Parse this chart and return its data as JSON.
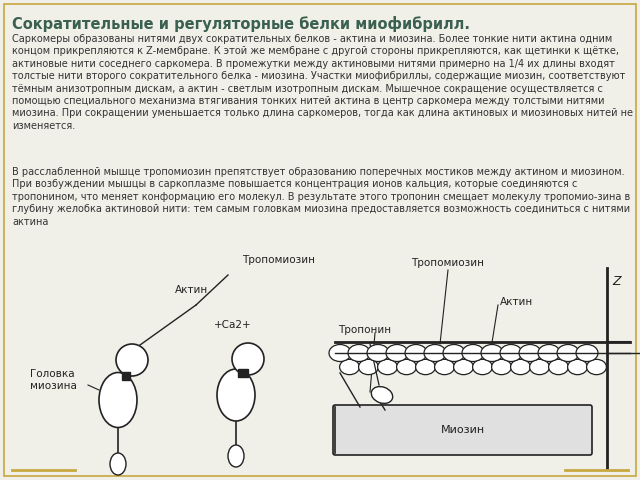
{
  "title": "Сократительные и регуляторные белки миофибрилл.",
  "title_color": "#3a6050",
  "title_fontsize": 10.5,
  "body_text_1": "Саркомеры образованы нитями двух сократительных белков - актина и миозина. Более тонкие нити актина одним концом прикрепляются к Z-мембране. К этой же мембране с другой стороны прикрепляются, как щетинки к щётке, актиновые нити соседнего саркомера. В промежутки между актиновыми нитями примерно на 1/4 их длины входят толстые нити второго сократительного белка - миозина. Участки миофибриллы, содержащие миозин, соответствуют тёмным анизотропным дискам, а актин - светлым изотропным дискам. Мышечное сокращение осуществляется с помощью специального механизма втягивания тонких нитей актина в центр саркомера между толстыми нитями миозина. При сокращении уменьшается только длина саркомеров, тогда как длина актиновых и миозиновых нитей не изменяется.",
  "body_text_2": "В расслабленной мышце тропомиозин препятствует образованию поперечных мостиков между актином и миозином. При возбуждении мышцы в саркоплазме повышается концентрация ионов кальция, которые соединяются с тропонином, что меняет конформацию его молекул. В результате этого тропонин смещает молекулу тропомио-зина в глубину желобка актиновой нити: тем самым головкам миозина предоставляется возможность соединиться с нитями актина",
  "body_fontsize": 7.0,
  "body_color": "#333333",
  "bg_color": "#f0efe8",
  "border_color": "#c8a840",
  "line_color": "#222222",
  "left_labels": {
    "tropomyosin": "Тропомиозин",
    "actin": "Актин",
    "myosin_head": "Головка\nмиозина",
    "ca": "+Ca2+"
  },
  "right_labels": {
    "tropomyosin": "Тропомиозин",
    "troponin": "Тропонин",
    "actin": "Актин",
    "myosin": "Миозин",
    "z": "Z"
  }
}
